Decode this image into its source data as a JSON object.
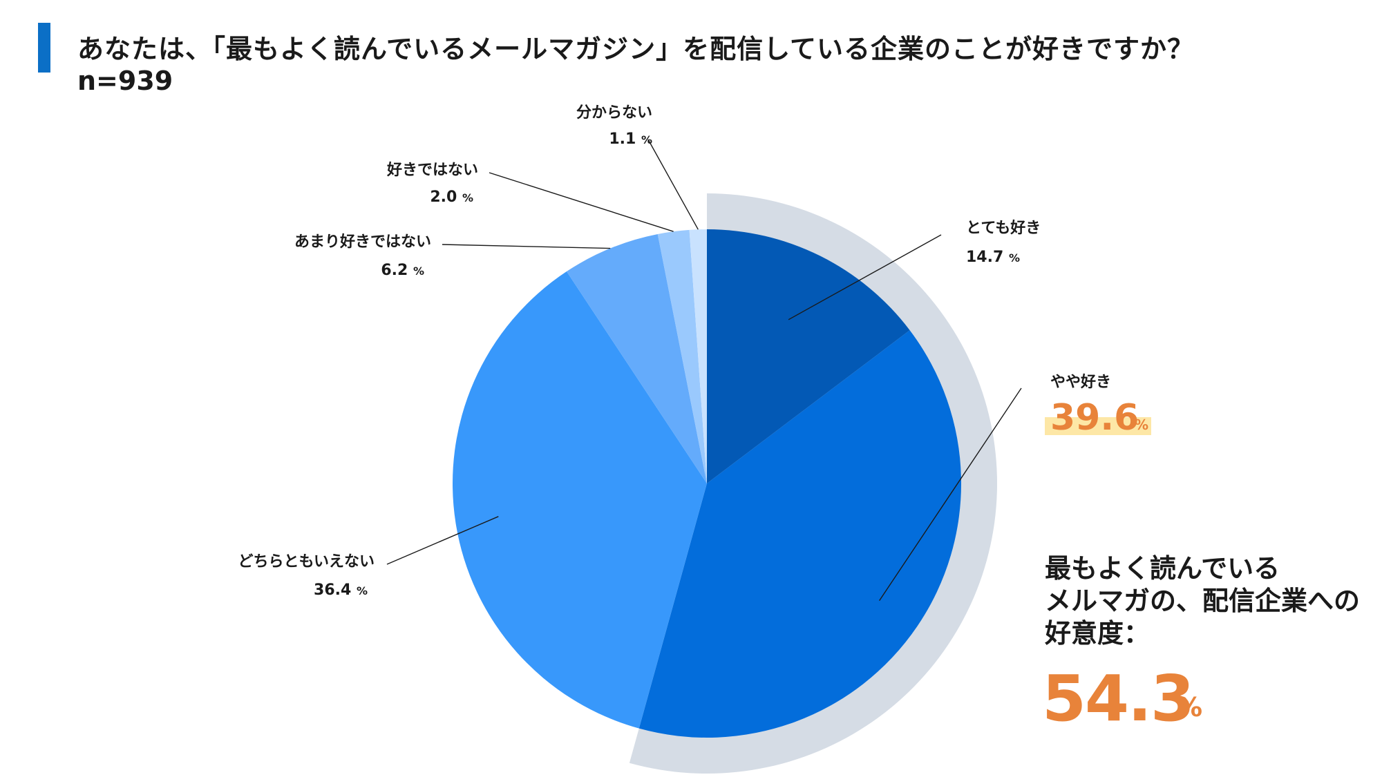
{
  "header": {
    "title": "あなたは、「最もよく読んでいるメールマガジン」を配信している企業のことが好きですか？",
    "subtitle": "n=939"
  },
  "chart_data": {
    "type": "pie",
    "unit": "%",
    "slices": [
      {
        "label": "とても好き",
        "value": 14.7,
        "color": "#0359b5"
      },
      {
        "label": "やや好き",
        "value": 39.6,
        "color": "#036ddb"
      },
      {
        "label": "どちらともいえない",
        "value": 36.4,
        "color": "#3898fb"
      },
      {
        "label": "あまり好きではない",
        "value": 6.2,
        "color": "#64abfb"
      },
      {
        "label": "好きではない",
        "value": 2.0,
        "color": "#9ac9fd"
      },
      {
        "label": "分からない",
        "value": 1.1,
        "color": "#c9e2fe"
      }
    ],
    "highlight": {
      "slices": [
        "とても好き",
        "やや好き"
      ],
      "ring_color": "#d5dce5",
      "label_highlight_color": "#fde7a6",
      "value_color": "#e8833a"
    }
  },
  "summary": {
    "lines": [
      "最もよく読んでいる",
      "メルマガの、配信企業への",
      "好意度："
    ],
    "value": "54.3",
    "unit": "%"
  }
}
